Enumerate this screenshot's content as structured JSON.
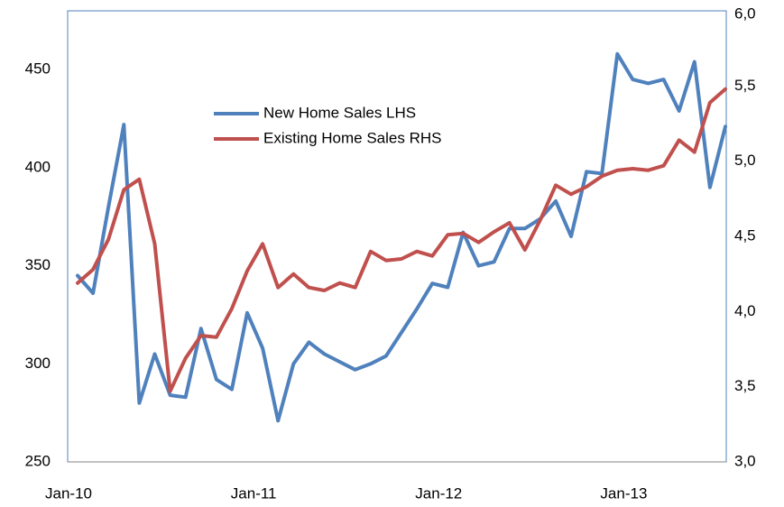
{
  "chart_data": {
    "type": "line",
    "categories": [
      "Jan-10",
      null,
      null,
      null,
      null,
      null,
      null,
      null,
      null,
      null,
      null,
      null,
      "Jan-11",
      null,
      null,
      null,
      null,
      null,
      null,
      null,
      null,
      null,
      null,
      null,
      "Jan-12",
      null,
      null,
      null,
      null,
      null,
      null,
      null,
      null,
      null,
      null,
      null,
      "Jan-13",
      null,
      null,
      null,
      null,
      null,
      null
    ],
    "series": [
      {
        "name": "New Home Sales LHS",
        "color": "#4f81bd",
        "values": [
          345,
          336,
          380,
          422,
          280,
          305,
          284,
          283,
          318,
          292,
          287,
          326,
          308,
          271,
          300,
          311,
          305,
          301,
          297,
          300,
          304,
          316,
          328,
          341,
          339,
          367,
          350,
          352,
          369,
          369,
          374,
          383,
          365,
          398,
          397,
          458,
          445,
          443,
          445,
          429,
          454,
          390,
          421
        ]
      },
      {
        "name": "Existing Home Sales RHS",
        "color": "#c0504d",
        "axis": "y2",
        "values": [
          4.19,
          4.28,
          4.48,
          4.81,
          4.88,
          4.45,
          3.47,
          3.69,
          3.84,
          3.83,
          4.02,
          4.27,
          4.45,
          4.16,
          4.25,
          4.16,
          4.14,
          4.19,
          4.16,
          4.4,
          4.34,
          4.35,
          4.4,
          4.37,
          4.51,
          4.52,
          4.46,
          4.53,
          4.59,
          4.41,
          4.61,
          4.84,
          4.78,
          4.83,
          4.9,
          4.94,
          4.95,
          4.94,
          4.97,
          5.14,
          5.06,
          5.39,
          5.48
        ]
      }
    ],
    "ylim": [
      250,
      480
    ],
    "yticks": [
      250,
      300,
      350,
      400,
      450
    ],
    "y2lim": [
      3,
      6
    ],
    "y2ticks": [
      {
        "value": 3,
        "label": "3,0"
      },
      {
        "value": 3.5,
        "label": "3,5"
      },
      {
        "value": 4,
        "label": "4,0"
      },
      {
        "value": 4.5,
        "label": "4,5"
      },
      {
        "value": 5,
        "label": "5,0"
      },
      {
        "value": 5.5,
        "label": "5,5"
      },
      {
        "value": 6,
        "label": "6,0"
      }
    ],
    "legend": "upper-left",
    "grid": false
  }
}
